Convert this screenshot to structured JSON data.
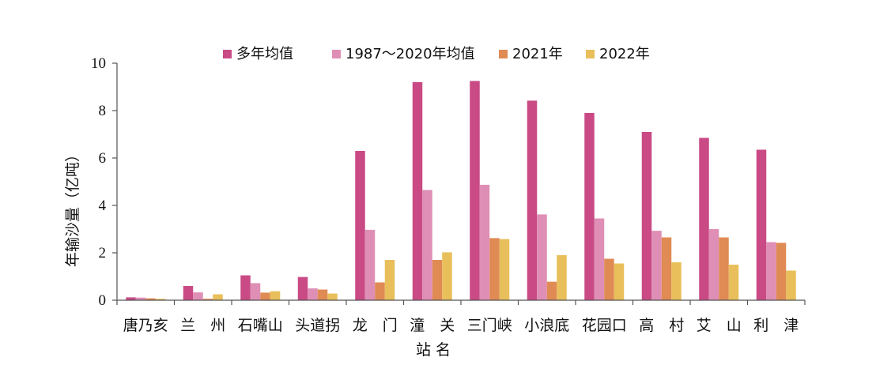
{
  "chart_data": {
    "type": "bar",
    "xlabel": "站 名",
    "ylabel": "年输沙量（亿吨）",
    "ylim": [
      0,
      10
    ],
    "yticks": [
      "0",
      "2",
      "4",
      "6",
      "8",
      "10"
    ],
    "legend_position": "top",
    "categories": [
      "唐乃亥",
      "兰　州",
      "石嘴山",
      "头道拐",
      "龙　门",
      "潼　关",
      "三门峡",
      "小浪底",
      "花园口",
      "高　村",
      "艾　山",
      "利　津"
    ],
    "series": [
      {
        "name": "多年均值",
        "color": "#c94a85",
        "values": [
          0.12,
          0.6,
          1.05,
          0.98,
          6.3,
          9.2,
          9.25,
          8.42,
          7.9,
          7.1,
          6.85,
          6.35
        ]
      },
      {
        "name": "1987～2020年均值",
        "color": "#df8fb5",
        "values": [
          0.11,
          0.33,
          0.72,
          0.5,
          2.97,
          4.65,
          4.87,
          3.62,
          3.45,
          2.93,
          3.0,
          2.45
        ]
      },
      {
        "name": "2021年",
        "color": "#e08a54",
        "values": [
          0.08,
          0.06,
          0.32,
          0.45,
          0.75,
          1.7,
          2.62,
          0.78,
          1.75,
          2.65,
          2.65,
          2.42
        ]
      },
      {
        "name": "2022年",
        "color": "#e8bf5a",
        "values": [
          0.06,
          0.25,
          0.38,
          0.28,
          1.7,
          2.02,
          2.58,
          1.9,
          1.55,
          1.6,
          1.5,
          1.25
        ]
      }
    ]
  }
}
